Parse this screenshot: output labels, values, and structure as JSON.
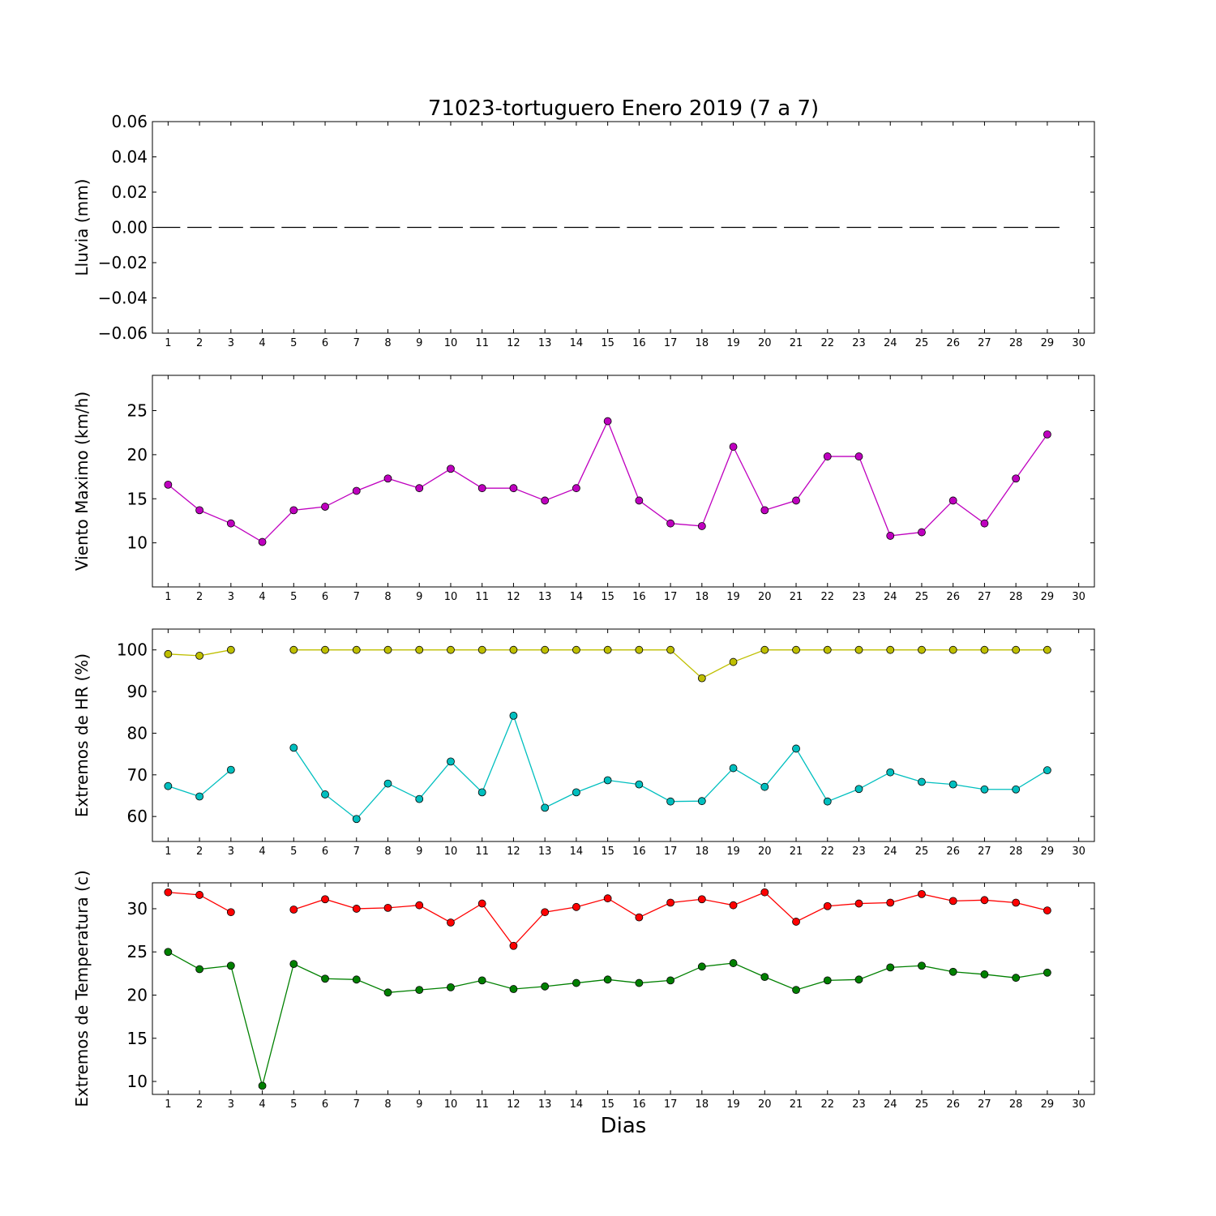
{
  "figure": {
    "title": "71023-tortuguero Enero 2019  (7 a 7)",
    "xlabel": "Dias"
  },
  "chart_data": [
    {
      "type": "bar",
      "ylabel": "Lluvia (mm)",
      "x": [
        1,
        2,
        3,
        4,
        5,
        6,
        7,
        8,
        9,
        10,
        11,
        12,
        13,
        14,
        15,
        16,
        17,
        18,
        19,
        20,
        21,
        22,
        23,
        24,
        25,
        26,
        27,
        28,
        29
      ],
      "ylim": [
        -0.06,
        0.06
      ],
      "xlim": [
        0.5,
        30.5
      ],
      "yticks": [
        -0.06,
        -0.04,
        -0.02,
        0.0,
        0.02,
        0.04,
        0.06
      ],
      "ytick_labels": [
        "−0.06",
        "−0.04",
        "−0.02",
        "0.00",
        "0.02",
        "0.04",
        "0.06"
      ],
      "xticks": [
        1,
        2,
        3,
        4,
        5,
        6,
        7,
        8,
        9,
        10,
        11,
        12,
        13,
        14,
        15,
        16,
        17,
        18,
        19,
        20,
        21,
        22,
        23,
        24,
        25,
        26,
        27,
        28,
        29,
        30
      ],
      "series": [
        {
          "values": [
            0,
            0,
            0,
            0,
            0,
            0,
            0,
            0,
            0,
            0,
            0,
            0,
            0,
            0,
            0,
            0,
            0,
            0,
            0,
            0,
            0,
            0,
            0,
            0,
            0,
            0,
            0,
            0,
            0
          ],
          "color": "#000000"
        }
      ]
    },
    {
      "type": "line",
      "ylabel": "Viento Maximo (km/h)",
      "x": [
        1,
        2,
        3,
        4,
        5,
        6,
        7,
        8,
        9,
        10,
        11,
        12,
        13,
        14,
        15,
        16,
        17,
        18,
        19,
        20,
        21,
        22,
        23,
        24,
        25,
        26,
        27,
        28,
        29
      ],
      "ylim": [
        5,
        29
      ],
      "xlim": [
        0.5,
        30.5
      ],
      "yticks": [
        10,
        15,
        20,
        25
      ],
      "ytick_labels": [
        "10",
        "15",
        "20",
        "25"
      ],
      "xticks": [
        1,
        2,
        3,
        4,
        5,
        6,
        7,
        8,
        9,
        10,
        11,
        12,
        13,
        14,
        15,
        16,
        17,
        18,
        19,
        20,
        21,
        22,
        23,
        24,
        25,
        26,
        27,
        28,
        29,
        30
      ],
      "series": [
        {
          "values": [
            16.6,
            13.7,
            12.2,
            10.1,
            13.7,
            14.1,
            15.9,
            17.3,
            16.2,
            18.4,
            16.2,
            16.2,
            14.8,
            16.2,
            23.8,
            14.8,
            12.2,
            11.9,
            20.9,
            13.7,
            14.8,
            19.8,
            19.8,
            10.8,
            11.2,
            14.8,
            12.2,
            17.3,
            22.3
          ],
          "color": "#bf00bf"
        }
      ]
    },
    {
      "type": "line",
      "ylabel": "Extremos de HR (%)",
      "x": [
        1,
        2,
        3,
        4,
        5,
        6,
        7,
        8,
        9,
        10,
        11,
        12,
        13,
        14,
        15,
        16,
        17,
        18,
        19,
        20,
        21,
        22,
        23,
        24,
        25,
        26,
        27,
        28,
        29
      ],
      "ylim": [
        54,
        105
      ],
      "xlim": [
        0.5,
        30.5
      ],
      "yticks": [
        60,
        70,
        80,
        90,
        100
      ],
      "ytick_labels": [
        "60",
        "70",
        "80",
        "90",
        "100"
      ],
      "xticks": [
        1,
        2,
        3,
        4,
        5,
        6,
        7,
        8,
        9,
        10,
        11,
        12,
        13,
        14,
        15,
        16,
        17,
        18,
        19,
        20,
        21,
        22,
        23,
        24,
        25,
        26,
        27,
        28,
        29,
        30
      ],
      "series": [
        {
          "values": [
            99.0,
            98.6,
            100,
            null,
            100,
            100,
            100,
            100,
            100,
            100,
            100,
            100,
            100,
            100,
            100,
            100,
            100,
            93.2,
            97.1,
            100,
            100,
            100,
            100,
            100,
            100,
            100,
            100,
            100,
            100
          ],
          "color": "#bfbf00"
        },
        {
          "values": [
            67.3,
            64.8,
            71.2,
            null,
            76.5,
            65.3,
            59.4,
            67.9,
            64.2,
            73.2,
            65.8,
            84.2,
            62.1,
            65.8,
            68.7,
            67.7,
            63.6,
            63.7,
            71.6,
            67.1,
            76.3,
            63.6,
            66.6,
            70.6,
            68.3,
            67.7,
            66.5,
            66.5,
            71.1
          ],
          "color": "#00bfbf"
        }
      ]
    },
    {
      "type": "line",
      "ylabel": "Extremos de Temperatura (c)",
      "x": [
        1,
        2,
        3,
        4,
        5,
        6,
        7,
        8,
        9,
        10,
        11,
        12,
        13,
        14,
        15,
        16,
        17,
        18,
        19,
        20,
        21,
        22,
        23,
        24,
        25,
        26,
        27,
        28,
        29
      ],
      "ylim": [
        8.5,
        33
      ],
      "xlim": [
        0.5,
        30.5
      ],
      "yticks": [
        10,
        15,
        20,
        25,
        30
      ],
      "ytick_labels": [
        "10",
        "15",
        "20",
        "25",
        "30"
      ],
      "xticks": [
        1,
        2,
        3,
        4,
        5,
        6,
        7,
        8,
        9,
        10,
        11,
        12,
        13,
        14,
        15,
        16,
        17,
        18,
        19,
        20,
        21,
        22,
        23,
        24,
        25,
        26,
        27,
        28,
        29,
        30
      ],
      "series": [
        {
          "values": [
            31.9,
            31.6,
            29.6,
            null,
            29.9,
            31.1,
            30.0,
            30.1,
            30.4,
            28.4,
            30.6,
            25.7,
            29.6,
            30.2,
            31.2,
            29.0,
            30.7,
            31.1,
            30.4,
            31.9,
            28.5,
            30.3,
            30.6,
            30.7,
            31.7,
            30.9,
            31.0,
            30.7,
            29.8
          ],
          "color": "#ff0000"
        },
        {
          "values": [
            25.0,
            23.0,
            23.4,
            9.5,
            23.6,
            21.9,
            21.8,
            20.3,
            20.6,
            20.9,
            21.7,
            20.7,
            21.0,
            21.4,
            21.8,
            21.4,
            21.7,
            23.3,
            23.7,
            22.1,
            20.6,
            21.7,
            21.8,
            23.2,
            23.4,
            22.7,
            22.4,
            22.0,
            22.6
          ],
          "color": "#008000"
        }
      ]
    }
  ]
}
